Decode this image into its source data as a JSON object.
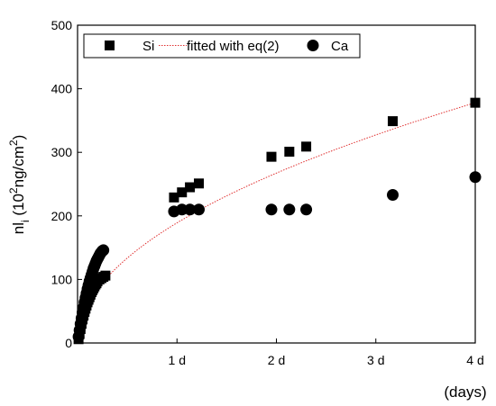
{
  "chart_data": {
    "type": "scatter",
    "title": "",
    "xlabel": "(days)",
    "ylabel_main": "nl",
    "ylabel_sub": "i",
    "ylabel_open": " (10",
    "ylabel_sup": "2",
    "ylabel_mid": "ng/cm",
    "ylabel_sup2": "2",
    "ylabel_close": ")",
    "xlim": [
      0,
      4
    ],
    "ylim": [
      0,
      500
    ],
    "x_ticks": [
      {
        "value": 1,
        "label": "1 d"
      },
      {
        "value": 2,
        "label": "2 d"
      },
      {
        "value": 3,
        "label": "3 d"
      },
      {
        "value": 4,
        "label": "4 d"
      }
    ],
    "y_ticks": [
      {
        "value": 0,
        "label": "0"
      },
      {
        "value": 100,
        "label": "100"
      },
      {
        "value": 200,
        "label": "200"
      },
      {
        "value": 300,
        "label": "300"
      },
      {
        "value": 400,
        "label": "400"
      },
      {
        "value": 500,
        "label": "500"
      }
    ],
    "legend_position": "top",
    "series": [
      {
        "name": "Si",
        "marker": "square",
        "color": "#000000",
        "points": [
          [
            0.01,
            6
          ],
          [
            0.02,
            14
          ],
          [
            0.03,
            22
          ],
          [
            0.04,
            30
          ],
          [
            0.05,
            37
          ],
          [
            0.06,
            43
          ],
          [
            0.07,
            49
          ],
          [
            0.08,
            54
          ],
          [
            0.09,
            59
          ],
          [
            0.1,
            64
          ],
          [
            0.11,
            68
          ],
          [
            0.12,
            72
          ],
          [
            0.13,
            76
          ],
          [
            0.14,
            80
          ],
          [
            0.15,
            83
          ],
          [
            0.16,
            86
          ],
          [
            0.17,
            89
          ],
          [
            0.18,
            92
          ],
          [
            0.19,
            94
          ],
          [
            0.2,
            97
          ],
          [
            0.22,
            100
          ],
          [
            0.24,
            102
          ],
          [
            0.26,
            104
          ],
          [
            0.28,
            106
          ],
          [
            0.97,
            229
          ],
          [
            1.05,
            237
          ],
          [
            1.13,
            245
          ],
          [
            1.22,
            251
          ],
          [
            1.95,
            293
          ],
          [
            2.13,
            301
          ],
          [
            2.3,
            309
          ],
          [
            3.17,
            349
          ],
          [
            4.0,
            378
          ]
        ]
      },
      {
        "name": "fitted with eq(2)",
        "marker": "line",
        "color": "#e03030",
        "fit_coefficient": 189
      },
      {
        "name": "Ca",
        "marker": "circle",
        "color": "#000000",
        "points": [
          [
            0.01,
            10
          ],
          [
            0.02,
            20
          ],
          [
            0.03,
            30
          ],
          [
            0.04,
            39
          ],
          [
            0.05,
            48
          ],
          [
            0.06,
            56
          ],
          [
            0.07,
            64
          ],
          [
            0.08,
            71
          ],
          [
            0.09,
            78
          ],
          [
            0.1,
            85
          ],
          [
            0.11,
            91
          ],
          [
            0.12,
            97
          ],
          [
            0.13,
            102
          ],
          [
            0.14,
            107
          ],
          [
            0.15,
            112
          ],
          [
            0.16,
            117
          ],
          [
            0.17,
            121
          ],
          [
            0.18,
            125
          ],
          [
            0.19,
            129
          ],
          [
            0.2,
            132
          ],
          [
            0.21,
            135
          ],
          [
            0.22,
            138
          ],
          [
            0.23,
            141
          ],
          [
            0.24,
            143
          ],
          [
            0.25,
            145
          ],
          [
            0.26,
            146
          ],
          [
            0.97,
            207
          ],
          [
            1.05,
            210
          ],
          [
            1.13,
            210
          ],
          [
            1.22,
            210
          ],
          [
            1.95,
            210
          ],
          [
            2.13,
            210
          ],
          [
            2.3,
            210
          ],
          [
            3.17,
            233
          ],
          [
            4.0,
            261
          ]
        ]
      }
    ]
  }
}
